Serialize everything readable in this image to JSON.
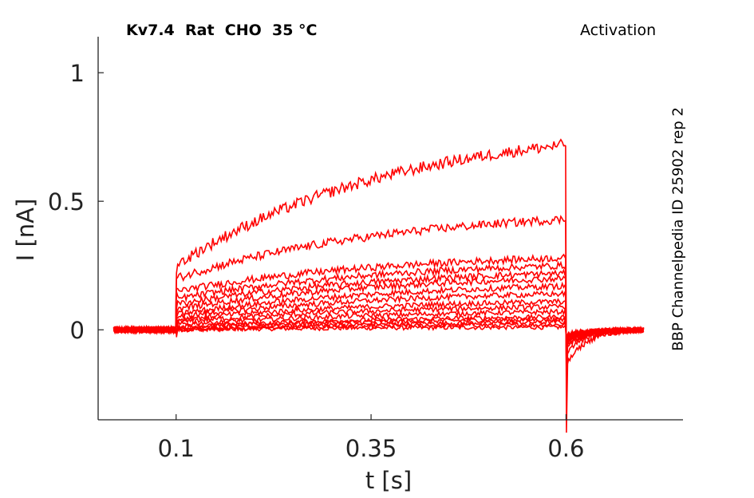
{
  "chart_data": {
    "type": "line",
    "title": "Kv7.4  Rat  CHO  35 °C",
    "protocol": "Activation",
    "side_label": "BBP Channelpedia ID 25902 rep 2",
    "xlabel": "t [s]",
    "ylabel": "I [nA]",
    "xlim": [
      0.0,
      0.75
    ],
    "ylim": [
      -0.35,
      1.14
    ],
    "xticks": [
      0.1,
      0.35,
      0.6
    ],
    "xtick_labels": [
      "0.1",
      "0.35",
      "0.6"
    ],
    "yticks": [
      0,
      0.5,
      1
    ],
    "ytick_labels": [
      "0",
      "0.5",
      "1"
    ],
    "grid": false,
    "line_color": "#ff0000",
    "axis_color": "#222222",
    "trace_time_range": [
      0.02,
      0.7
    ],
    "step_on_s": 0.1,
    "step_off_s": 0.6,
    "series": [
      {
        "pulse_start_nA": 0.0,
        "pulse_end_nA": 0.01
      },
      {
        "pulse_start_nA": 0.0,
        "pulse_end_nA": 0.02
      },
      {
        "pulse_start_nA": 0.0,
        "pulse_end_nA": 0.03
      },
      {
        "pulse_start_nA": 0.01,
        "pulse_end_nA": 0.04
      },
      {
        "pulse_start_nA": 0.01,
        "pulse_end_nA": 0.05
      },
      {
        "pulse_start_nA": 0.02,
        "pulse_end_nA": 0.07
      },
      {
        "pulse_start_nA": 0.03,
        "pulse_end_nA": 0.09
      },
      {
        "pulse_start_nA": 0.04,
        "pulse_end_nA": 0.11
      },
      {
        "pulse_start_nA": 0.05,
        "pulse_end_nA": 0.14
      },
      {
        "pulse_start_nA": 0.06,
        "pulse_end_nA": 0.17
      },
      {
        "pulse_start_nA": 0.08,
        "pulse_end_nA": 0.2
      },
      {
        "pulse_start_nA": 0.1,
        "pulse_end_nA": 0.22
      },
      {
        "pulse_start_nA": 0.12,
        "pulse_end_nA": 0.25
      },
      {
        "pulse_start_nA": 0.15,
        "pulse_end_nA": 0.28
      },
      {
        "pulse_start_nA": 0.2,
        "pulse_end_nA": 0.43
      },
      {
        "pulse_start_nA": 0.25,
        "pulse_end_nA": 0.72
      }
    ]
  }
}
